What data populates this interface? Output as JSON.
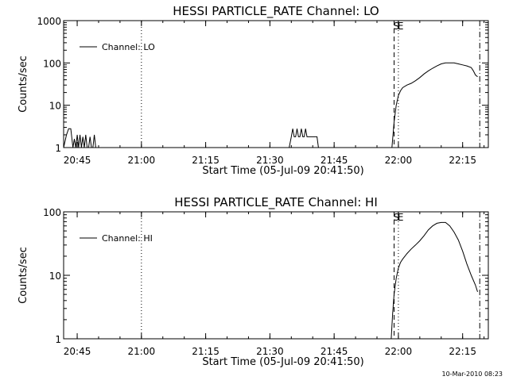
{
  "chart_data": [
    {
      "type": "line",
      "title": "HESSI PARTICLE_RATE Channel: LO",
      "xlabel": "Start Time (05-Jul-09 20:41:50)",
      "ylabel": "Counts/sec",
      "xlim": [
        "20:41:50",
        "22:21:00"
      ],
      "ylim": [
        1,
        1000
      ],
      "yscale": "log",
      "x_ticks": [
        "20:45",
        "21:00",
        "21:15",
        "21:30",
        "21:45",
        "22:00",
        "22:15"
      ],
      "y_ticks": [
        "1",
        "10",
        "100",
        "1000"
      ],
      "legend": {
        "label": "Channel: LO",
        "placement": "top-left"
      },
      "markers": [
        {
          "time": "21:00",
          "style": "dotted",
          "label": ""
        },
        {
          "time": "21:59",
          "style": "dashed",
          "label": "S"
        },
        {
          "time": "22:00",
          "style": "dotted",
          "label": "E"
        },
        {
          "time": "22:19",
          "style": "dash-dot",
          "label": ""
        }
      ],
      "series": [
        {
          "name": "Channel: LO",
          "segments": [
            {
              "x": [
                "20:41:50",
                "20:42:30",
                "20:43:00",
                "20:43:30",
                "20:44:00",
                "20:44:20",
                "20:44:40",
                "20:45:00",
                "20:45:20",
                "20:45:40",
                "20:46:00",
                "20:46:20",
                "20:46:40",
                "20:47:00",
                "20:47:20",
                "20:47:40",
                "20:48:00",
                "20:48:20",
                "20:48:40",
                "20:49:00",
                "20:49:20",
                "20:49:40"
              ],
              "y": [
                1,
                2,
                2.8,
                2.8,
                1,
                1.6,
                1,
                2,
                1,
                2,
                1,
                1.8,
                1,
                2,
                1,
                1,
                1.8,
                1,
                1,
                2,
                1,
                1
              ]
            },
            {
              "x": [
                "21:34:30",
                "21:35:00",
                "21:35:20",
                "21:35:40",
                "21:36:00",
                "21:36:20",
                "21:36:40",
                "21:37:00",
                "21:37:20",
                "21:37:40",
                "21:38:00",
                "21:38:20",
                "21:38:40",
                "21:39:00",
                "21:39:20",
                "21:39:40",
                "21:40:00",
                "21:40:20",
                "21:40:40",
                "21:41:00",
                "21:41:20",
                "21:41:40"
              ],
              "y": [
                1,
                1.8,
                2.8,
                1.8,
                1.8,
                2.8,
                1.8,
                1.8,
                2.8,
                1.8,
                1.8,
                2.8,
                1.8,
                1.8,
                1.8,
                1.8,
                1.8,
                1.8,
                1.8,
                1.8,
                1,
                1
              ]
            },
            {
              "x": [
                "21:58:30",
                "21:59:00",
                "21:59:30",
                "22:00:00",
                "22:00:30",
                "22:01:00",
                "22:02:00",
                "22:03:00",
                "22:04:00",
                "22:05:00",
                "22:06:00",
                "22:07:00",
                "22:08:00",
                "22:09:00",
                "22:10:00",
                "22:11:00",
                "22:12:00",
                "22:13:00",
                "22:14:00",
                "22:15:00",
                "22:16:00",
                "22:17:00",
                "22:17:30",
                "22:18:00",
                "22:18:30"
              ],
              "y": [
                1,
                4,
                10,
                17,
                22,
                26,
                30,
                33,
                38,
                45,
                55,
                65,
                75,
                85,
                95,
                100,
                100,
                100,
                95,
                90,
                85,
                78,
                65,
                52,
                47
              ]
            }
          ]
        }
      ]
    },
    {
      "type": "line",
      "title": "HESSI PARTICLE_RATE Channel: HI",
      "xlabel": "Start Time (05-Jul-09 20:41:50)",
      "ylabel": "Counts/sec",
      "xlim": [
        "20:41:50",
        "22:21:00"
      ],
      "ylim": [
        1,
        100
      ],
      "yscale": "log",
      "x_ticks": [
        "20:45",
        "21:00",
        "21:15",
        "21:30",
        "21:45",
        "22:00",
        "22:15"
      ],
      "y_ticks": [
        "1",
        "10",
        "100"
      ],
      "legend": {
        "label": "Channel: HI",
        "placement": "top-left"
      },
      "markers": [
        {
          "time": "21:00",
          "style": "dotted",
          "label": ""
        },
        {
          "time": "21:59",
          "style": "dashed",
          "label": "S"
        },
        {
          "time": "22:00",
          "style": "dotted",
          "label": "E"
        },
        {
          "time": "22:19",
          "style": "dash-dot",
          "label": ""
        }
      ],
      "series": [
        {
          "name": "Channel: HI",
          "segments": [
            {
              "x": [
                "21:58:20",
                "21:58:40",
                "21:59:00",
                "21:59:30",
                "22:00:00",
                "22:00:30",
                "22:01:00",
                "22:02:00",
                "22:03:00",
                "22:04:00",
                "22:05:00",
                "22:06:00",
                "22:07:00",
                "22:08:00",
                "22:09:00",
                "22:10:00",
                "22:11:00",
                "22:12:00",
                "22:13:00",
                "22:14:00",
                "22:15:00",
                "22:16:00",
                "22:17:00",
                "22:18:00",
                "22:18:30"
              ],
              "y": [
                1,
                2.5,
                5,
                9,
                13,
                16,
                18,
                22,
                26,
                30,
                35,
                42,
                52,
                60,
                66,
                68,
                68,
                60,
                48,
                36,
                24,
                15,
                10,
                7,
                5.5
              ]
            }
          ]
        }
      ]
    }
  ],
  "footer": {
    "timestamp": "10-Mar-2010 08:23"
  }
}
